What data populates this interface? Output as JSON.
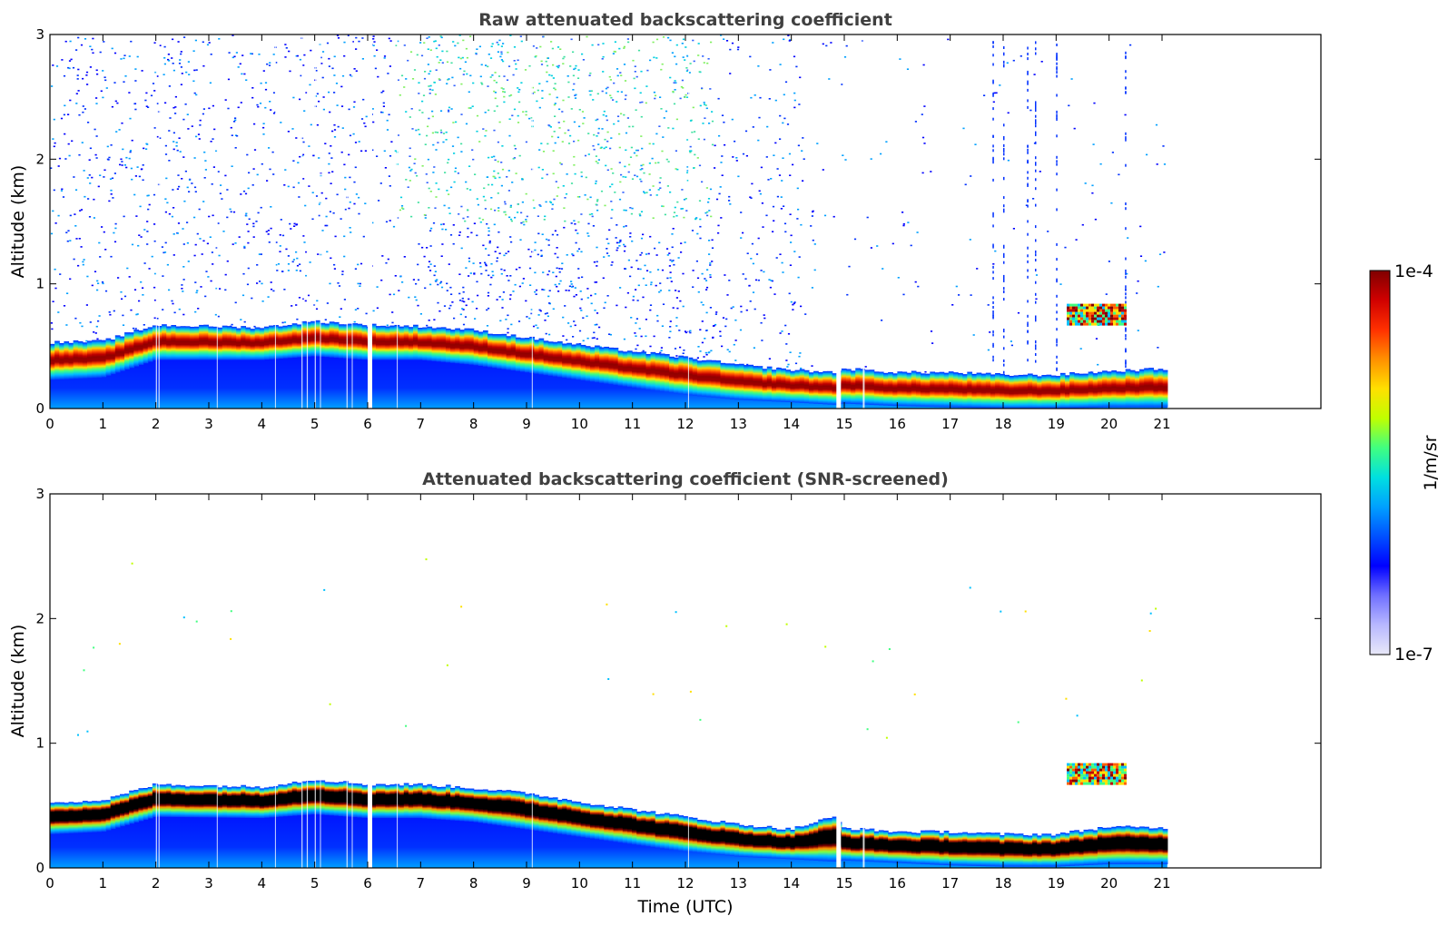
{
  "chart_data": [
    {
      "id": "raw",
      "type": "heatmap",
      "title": "Raw attenuated backscattering coefficient",
      "xlabel": "",
      "ylabel": "Altitude (km)",
      "xlim": [
        0,
        24
      ],
      "ylim": [
        0,
        3
      ],
      "x_ticks": [
        "0",
        "1",
        "2",
        "3",
        "4",
        "5",
        "6",
        "7",
        "8",
        "9",
        "10",
        "11",
        "12",
        "13",
        "14",
        "15",
        "16",
        "17",
        "18",
        "19",
        "20",
        "21"
      ],
      "y_ticks": [
        "0",
        "1",
        "2",
        "3"
      ],
      "data_end_time": 21.1,
      "layer_top_km": {
        "t": [
          0,
          1,
          2,
          4,
          5,
          6,
          7,
          8,
          9,
          10,
          11,
          12,
          13,
          14,
          14.8,
          15,
          16,
          17,
          18,
          19,
          20,
          21.1
        ],
        "z": [
          0.48,
          0.49,
          0.62,
          0.6,
          0.65,
          0.62,
          0.61,
          0.58,
          0.52,
          0.46,
          0.41,
          0.36,
          0.3,
          0.26,
          0.24,
          0.27,
          0.24,
          0.24,
          0.22,
          0.22,
          0.25,
          0.27
        ]
      },
      "layer_bottom_km": {
        "t": [
          0,
          1,
          2,
          4,
          5,
          6,
          7,
          8,
          9,
          10,
          11,
          12,
          13,
          14,
          14.8,
          15,
          16,
          17,
          18,
          19,
          20,
          21.1
        ],
        "z": [
          0.28,
          0.3,
          0.44,
          0.44,
          0.47,
          0.44,
          0.44,
          0.4,
          0.34,
          0.28,
          0.22,
          0.16,
          0.12,
          0.1,
          0.08,
          0.09,
          0.07,
          0.06,
          0.05,
          0.05,
          0.06,
          0.06
        ]
      },
      "elevated_layer": {
        "t_range": [
          19.2,
          20.3
        ],
        "z_range": [
          0.68,
          0.84
        ]
      },
      "noise_note": "scattered background noise aloft, strongest 7-12 UTC"
    },
    {
      "id": "screened",
      "type": "heatmap",
      "title": "Attenuated backscattering coefficient (SNR-screened)",
      "xlabel": "Time (UTC)",
      "ylabel": "Altitude (km)",
      "xlim": [
        0,
        24
      ],
      "ylim": [
        0,
        3
      ],
      "x_ticks": [
        "0",
        "1",
        "2",
        "3",
        "4",
        "5",
        "6",
        "7",
        "8",
        "9",
        "10",
        "11",
        "12",
        "13",
        "14",
        "15",
        "16",
        "17",
        "18",
        "19",
        "20",
        "21"
      ],
      "y_ticks": [
        "0",
        "1",
        "2",
        "3"
      ],
      "data_end_time": 21.1,
      "saturated_core_color": "#000000",
      "layer_top_km": {
        "t": [
          0,
          1,
          2,
          4,
          5,
          6,
          7,
          8,
          9,
          10,
          11,
          12,
          13,
          14,
          14.8,
          15,
          16,
          17,
          18,
          19,
          20,
          21.1
        ],
        "z": [
          0.48,
          0.49,
          0.62,
          0.6,
          0.66,
          0.62,
          0.62,
          0.59,
          0.55,
          0.48,
          0.42,
          0.36,
          0.3,
          0.26,
          0.36,
          0.27,
          0.24,
          0.24,
          0.22,
          0.22,
          0.28,
          0.27
        ]
      },
      "layer_bottom_km": {
        "t": [
          0,
          1,
          2,
          4,
          5,
          6,
          7,
          8,
          9,
          10,
          11,
          12,
          13,
          14,
          14.8,
          15,
          16,
          17,
          18,
          19,
          20,
          21.1
        ],
        "z": [
          0.32,
          0.34,
          0.46,
          0.45,
          0.48,
          0.45,
          0.45,
          0.42,
          0.36,
          0.3,
          0.24,
          0.18,
          0.14,
          0.12,
          0.1,
          0.11,
          0.09,
          0.07,
          0.06,
          0.06,
          0.08,
          0.08
        ]
      },
      "elevated_layer": {
        "t_range": [
          19.2,
          20.3
        ],
        "z_range": [
          0.68,
          0.84
        ]
      }
    }
  ],
  "colorbar": {
    "label": "1/m/sr",
    "min_label": "1e-7",
    "max_label": "1e-4",
    "colors": [
      "#e8e8f8",
      "#b8b8ff",
      "#7070ff",
      "#0000ff",
      "#0050ff",
      "#00a0ff",
      "#00e0e0",
      "#40ff80",
      "#c0ff00",
      "#ffe000",
      "#ff9000",
      "#ff3000",
      "#d00000",
      "#800000"
    ]
  }
}
